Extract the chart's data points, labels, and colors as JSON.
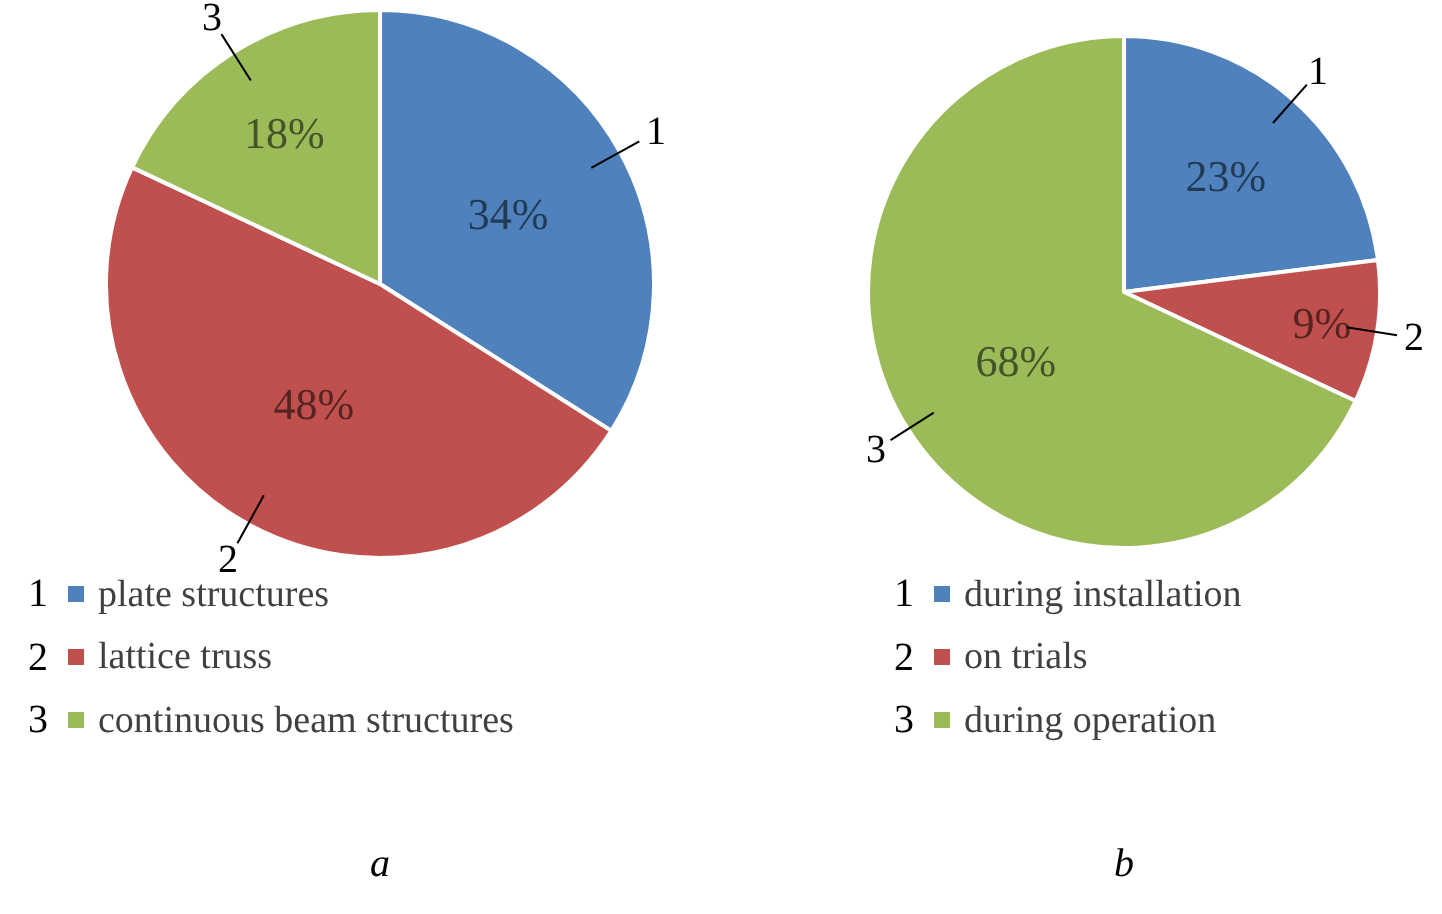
{
  "chart_data": [
    {
      "type": "pie",
      "xlabel": "a",
      "categories": [
        "plate structures",
        "lattice truss",
        "continuous beam structures"
      ],
      "values": [
        34,
        48,
        18
      ],
      "colors": [
        "#4f81bd",
        "#c0504d",
        "#9bbb59"
      ],
      "value_labels": [
        "34%",
        "48%",
        "18%"
      ],
      "annotations": [
        "1",
        "2",
        "3"
      ],
      "legend": "bottom"
    },
    {
      "type": "pie",
      "xlabel": "b",
      "categories": [
        "during installation",
        "on trials",
        "during operation"
      ],
      "values": [
        23,
        9,
        68
      ],
      "colors": [
        "#4f81bd",
        "#c0504d",
        "#9bbb59"
      ],
      "value_labels": [
        "23%",
        "9%",
        "68%"
      ],
      "annotations": [
        "1",
        "2",
        "3"
      ],
      "legend": "bottom"
    }
  ]
}
